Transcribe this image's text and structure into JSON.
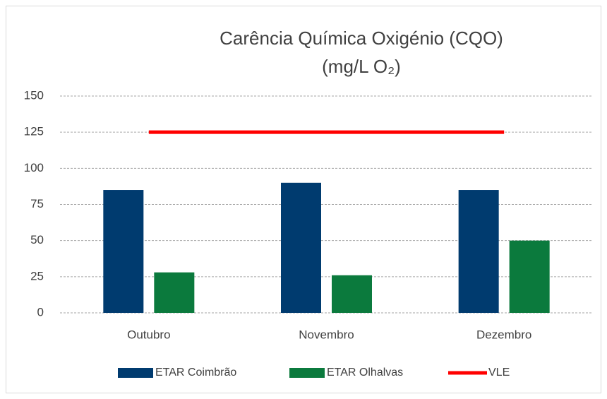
{
  "chart_data": {
    "type": "bar",
    "title": "Carência Química Oxigénio (CQO)",
    "subtitle": "(mg/L O₂)",
    "categories": [
      "Outubro",
      "Novembro",
      "Dezembro"
    ],
    "series": [
      {
        "name": "ETAR Coimbrão",
        "color": "#003b6f",
        "values": [
          85,
          90,
          85
        ]
      },
      {
        "name": "ETAR Olhalvas",
        "color": "#0b7a3d",
        "values": [
          28,
          26,
          50
        ]
      },
      {
        "name": "VLE",
        "color": "#ff0000",
        "type": "line",
        "values": [
          125,
          125,
          125
        ]
      }
    ],
    "ylim": [
      0,
      150
    ],
    "yticks": [
      0,
      25,
      50,
      75,
      100,
      125,
      150
    ],
    "grid": true,
    "legend": "bottom"
  }
}
